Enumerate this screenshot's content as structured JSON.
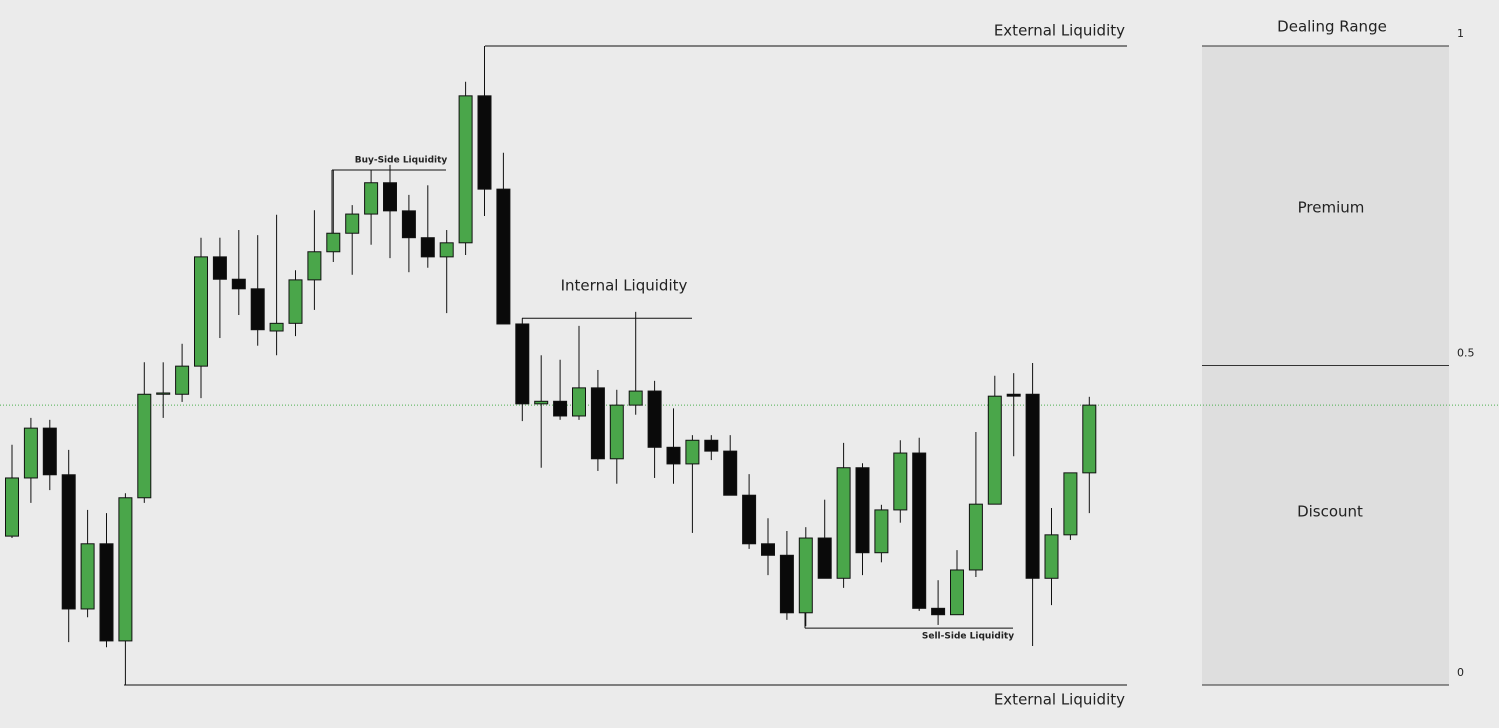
{
  "chart_data": {
    "type": "candlestick",
    "ylim": [
      0,
      1
    ],
    "yticks": [
      1,
      0.5,
      0
    ],
    "up_color": "#4aa64a",
    "down_color": "#0a0a0a",
    "series": {
      "open": [
        0.233,
        0.324,
        0.402,
        0.329,
        0.119,
        0.221,
        0.069,
        0.293,
        0.455,
        0.455,
        0.499,
        0.67,
        0.635,
        0.62,
        0.554,
        0.566,
        0.634,
        0.678,
        0.707,
        0.737,
        0.786,
        0.742,
        0.7,
        0.67,
        0.692,
        0.922,
        0.776,
        0.565,
        0.44,
        0.444,
        0.421,
        0.465,
        0.354,
        0.438,
        0.46,
        0.372,
        0.346,
        0.383,
        0.366,
        0.297,
        0.221,
        0.203,
        0.113,
        0.23,
        0.167,
        0.34,
        0.207,
        0.274,
        0.363,
        0.12,
        0.11,
        0.18,
        0.283,
        0.455,
        0.455,
        0.167,
        0.235,
        0.332
      ],
      "high": [
        0.376,
        0.418,
        0.415,
        0.368,
        0.274,
        0.269,
        0.3,
        0.505,
        0.505,
        0.534,
        0.7,
        0.7,
        0.712,
        0.704,
        0.736,
        0.649,
        0.743,
        0.806,
        0.751,
        0.806,
        0.814,
        0.767,
        0.782,
        0.712,
        0.944,
        1.0,
        0.833,
        0.574,
        0.516,
        0.509,
        0.562,
        0.493,
        0.462,
        0.584,
        0.476,
        0.433,
        0.391,
        0.391,
        0.391,
        0.33,
        0.261,
        0.241,
        0.247,
        0.29,
        0.379,
        0.347,
        0.282,
        0.383,
        0.387,
        0.164,
        0.211,
        0.396,
        0.484,
        0.488,
        0.504,
        0.277,
        0.332,
        0.451
      ],
      "low": [
        0.23,
        0.285,
        0.305,
        0.067,
        0.106,
        0.059,
        0.0,
        0.285,
        0.418,
        0.443,
        0.449,
        0.543,
        0.579,
        0.531,
        0.516,
        0.546,
        0.587,
        0.662,
        0.642,
        0.689,
        0.668,
        0.646,
        0.653,
        0.582,
        0.673,
        0.734,
        0.565,
        0.413,
        0.34,
        0.415,
        0.415,
        0.335,
        0.315,
        0.423,
        0.324,
        0.315,
        0.238,
        0.352,
        0.297,
        0.213,
        0.172,
        0.102,
        0.092,
        0.167,
        0.152,
        0.172,
        0.192,
        0.254,
        0.116,
        0.094,
        0.11,
        0.169,
        0.283,
        0.358,
        0.061,
        0.125,
        0.227,
        0.269
      ],
      "close": [
        0.324,
        0.402,
        0.329,
        0.119,
        0.221,
        0.069,
        0.293,
        0.455,
        0.457,
        0.499,
        0.67,
        0.635,
        0.62,
        0.556,
        0.566,
        0.634,
        0.678,
        0.707,
        0.737,
        0.786,
        0.742,
        0.7,
        0.67,
        0.692,
        0.922,
        0.776,
        0.565,
        0.44,
        0.444,
        0.421,
        0.465,
        0.354,
        0.438,
        0.46,
        0.372,
        0.346,
        0.383,
        0.366,
        0.297,
        0.221,
        0.203,
        0.113,
        0.23,
        0.167,
        0.34,
        0.207,
        0.274,
        0.363,
        0.12,
        0.11,
        0.18,
        0.283,
        0.452,
        0.452,
        0.167,
        0.235,
        0.332,
        0.438
      ]
    },
    "annotations": [
      {
        "text": "External Liquidity",
        "level": 1
      },
      {
        "text": "External Liquidity",
        "level": 0
      },
      {
        "text": "Buy-Side Liquidity",
        "level": 0.806
      },
      {
        "text": "Internal Liquidity",
        "level": 0.574
      },
      {
        "text": "Sell-Side Liquidity",
        "level": 0.089
      }
    ],
    "dealing_range": {
      "title": "Dealing Range",
      "premium": "Premium",
      "discount": "Discount"
    }
  }
}
